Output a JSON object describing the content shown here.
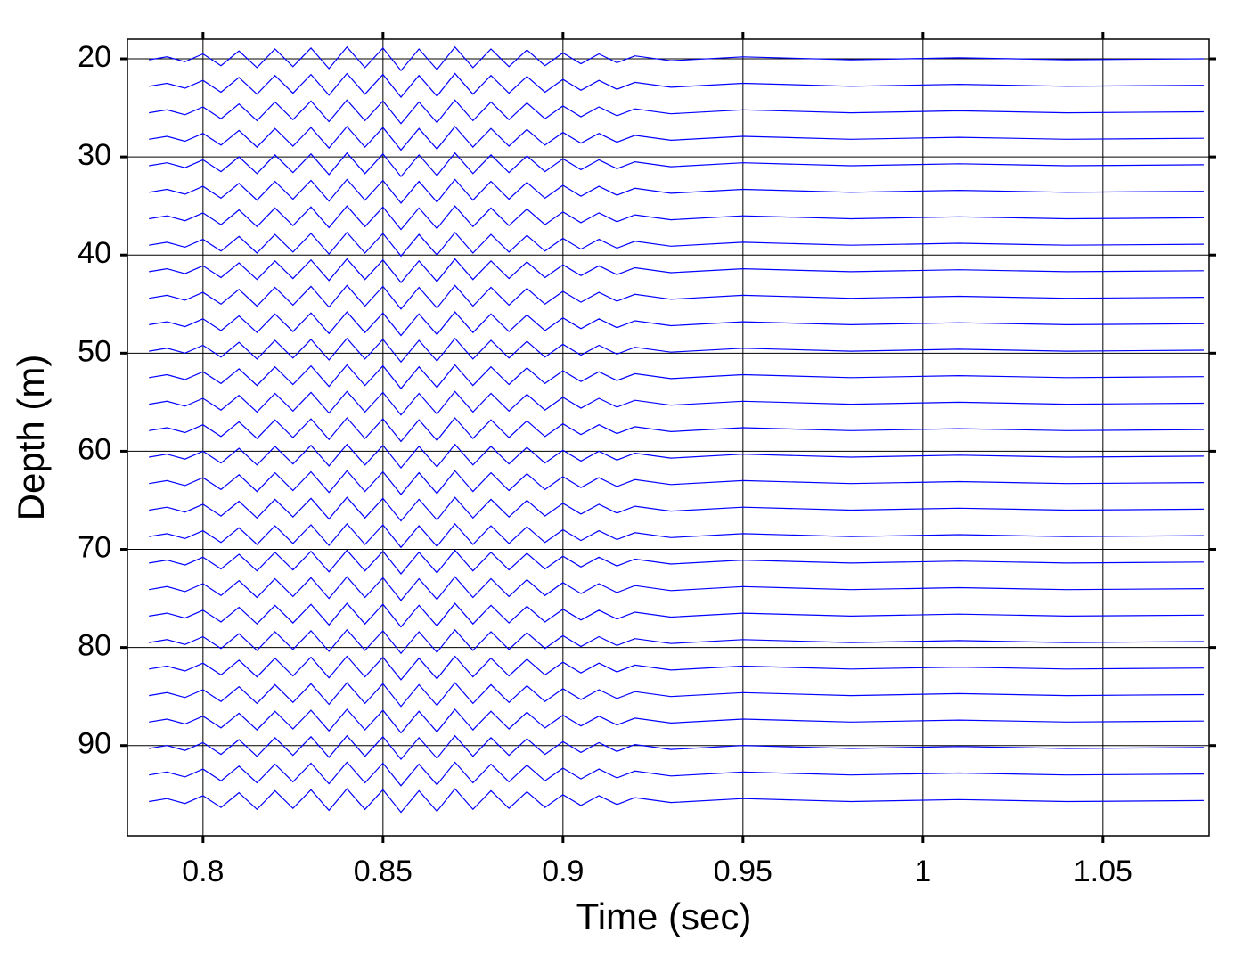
{
  "chart_data": {
    "type": "line",
    "x_label": "Time (sec)",
    "y_label": "Depth (m)",
    "xlim": [
      0.779,
      1.0795
    ],
    "ylim": [
      99.2,
      18.0
    ],
    "xticks": [
      0.8,
      0.85,
      0.9,
      0.95,
      1,
      1.05
    ],
    "yticks": [
      20,
      30,
      40,
      50,
      60,
      70,
      80,
      90
    ],
    "grid": true,
    "x": [
      0.785,
      0.79,
      0.795,
      0.8,
      0.805,
      0.81,
      0.815,
      0.82,
      0.825,
      0.83,
      0.835,
      0.84,
      0.845,
      0.85,
      0.855,
      0.86,
      0.865,
      0.87,
      0.875,
      0.88,
      0.885,
      0.89,
      0.895,
      0.9,
      0.905,
      0.91,
      0.915,
      0.92,
      0.93,
      0.95,
      0.98,
      1.01,
      1.04,
      1.078
    ],
    "series": [
      {
        "color": "#0000ff",
        "values": [
          20.1,
          19.8,
          20.3,
          19.5,
          20.7,
          19.2,
          20.9,
          19.0,
          20.8,
          18.9,
          21.0,
          18.8,
          20.9,
          18.9,
          21.2,
          19.0,
          21.1,
          18.8,
          20.9,
          19.0,
          20.8,
          19.1,
          20.7,
          19.4,
          20.5,
          19.5,
          20.4,
          19.7,
          20.2,
          19.8,
          20.1,
          19.9,
          20.1,
          20
        ]
      },
      {
        "color": "#0000ff",
        "values": [
          22.8,
          22.5,
          23.0,
          22.2,
          23.4,
          21.9,
          23.6,
          21.7,
          23.5,
          21.6,
          23.7,
          21.5,
          23.6,
          21.6,
          23.9,
          21.7,
          23.8,
          21.5,
          23.6,
          21.7,
          23.5,
          21.8,
          23.4,
          22.1,
          23.2,
          22.2,
          23.1,
          22.4,
          22.9,
          22.5,
          22.8,
          22.6,
          22.8,
          22.7
        ]
      },
      {
        "color": "#0000ff",
        "values": [
          25.5,
          25.2,
          25.7,
          24.9,
          26.1,
          24.6,
          26.3,
          24.4,
          26.2,
          24.3,
          26.4,
          24.2,
          26.3,
          24.3,
          26.6,
          24.4,
          26.5,
          24.2,
          26.3,
          24.4,
          26.2,
          24.5,
          26.1,
          24.8,
          25.9,
          24.9,
          25.8,
          25.1,
          25.6,
          25.2,
          25.5,
          25.3,
          25.5,
          25.4
        ]
      },
      {
        "color": "#0000ff",
        "values": [
          28.2,
          27.9,
          28.4,
          27.6,
          28.8,
          27.3,
          29.0,
          27.1,
          28.9,
          27.0,
          29.1,
          26.9,
          29.0,
          27.0,
          29.3,
          27.1,
          29.2,
          26.9,
          29.0,
          27.1,
          28.9,
          27.2,
          28.8,
          27.5,
          28.6,
          27.6,
          28.5,
          27.8,
          28.3,
          27.9,
          28.2,
          28.0,
          28.2,
          28.1
        ]
      },
      {
        "color": "#0000ff",
        "values": [
          30.9,
          30.6,
          31.1,
          30.3,
          31.5,
          30.0,
          31.7,
          29.8,
          31.6,
          29.7,
          31.8,
          29.6,
          31.7,
          29.7,
          32.0,
          29.8,
          31.9,
          29.6,
          31.7,
          29.8,
          31.6,
          29.9,
          31.5,
          30.2,
          31.3,
          30.3,
          31.2,
          30.5,
          31.0,
          30.6,
          30.9,
          30.7,
          30.9,
          30.8
        ]
      },
      {
        "color": "#0000ff",
        "values": [
          33.6,
          33.3,
          33.8,
          33.0,
          34.2,
          32.7,
          34.4,
          32.5,
          34.3,
          32.4,
          34.5,
          32.3,
          34.4,
          32.4,
          34.7,
          32.5,
          34.6,
          32.3,
          34.4,
          32.5,
          34.3,
          32.6,
          34.2,
          32.9,
          34.0,
          33.0,
          33.9,
          33.2,
          33.7,
          33.3,
          33.6,
          33.4,
          33.6,
          33.5
        ]
      },
      {
        "color": "#0000ff",
        "values": [
          36.3,
          36.0,
          36.5,
          35.7,
          36.9,
          35.4,
          37.1,
          35.2,
          37.0,
          35.1,
          37.2,
          35.0,
          37.1,
          35.1,
          37.4,
          35.2,
          37.3,
          35.0,
          37.1,
          35.2,
          37.0,
          35.3,
          36.9,
          35.6,
          36.7,
          35.7,
          36.6,
          35.9,
          36.4,
          36.0,
          36.3,
          36.1,
          36.3,
          36.2
        ]
      },
      {
        "color": "#0000ff",
        "values": [
          39.0,
          38.7,
          39.2,
          38.4,
          39.6,
          38.1,
          39.8,
          37.9,
          39.7,
          37.8,
          39.9,
          37.7,
          39.8,
          37.8,
          40.1,
          37.9,
          40.0,
          37.7,
          39.8,
          37.9,
          39.7,
          38.0,
          39.6,
          38.3,
          39.4,
          38.4,
          39.3,
          38.6,
          39.1,
          38.7,
          39.0,
          38.8,
          39.0,
          38.9
        ]
      },
      {
        "color": "#0000ff",
        "values": [
          41.7,
          41.4,
          41.9,
          41.1,
          42.3,
          40.8,
          42.5,
          40.6,
          42.4,
          40.5,
          42.6,
          40.4,
          42.5,
          40.5,
          42.8,
          40.6,
          42.7,
          40.4,
          42.5,
          40.6,
          42.4,
          40.7,
          42.3,
          41.0,
          42.1,
          41.1,
          42.0,
          41.3,
          41.8,
          41.4,
          41.7,
          41.5,
          41.7,
          41.6
        ]
      },
      {
        "color": "#0000ff",
        "values": [
          44.4,
          44.1,
          44.6,
          43.8,
          45.0,
          43.5,
          45.2,
          43.3,
          45.1,
          43.2,
          45.3,
          43.1,
          45.2,
          43.2,
          45.5,
          43.3,
          45.4,
          43.1,
          45.2,
          43.3,
          45.1,
          43.4,
          45.0,
          43.7,
          44.8,
          43.8,
          44.7,
          44.0,
          44.5,
          44.1,
          44.4,
          44.2,
          44.4,
          44.3
        ]
      },
      {
        "color": "#0000ff",
        "values": [
          47.1,
          46.8,
          47.3,
          46.5,
          47.7,
          46.2,
          47.9,
          46.0,
          47.8,
          45.9,
          48.0,
          45.8,
          47.9,
          45.9,
          48.2,
          46.0,
          48.1,
          45.8,
          47.9,
          46.0,
          47.8,
          46.1,
          47.7,
          46.4,
          47.5,
          46.5,
          47.4,
          46.7,
          47.2,
          46.8,
          47.1,
          46.9,
          47.1,
          47
        ]
      },
      {
        "color": "#0000ff",
        "values": [
          49.8,
          49.5,
          50.0,
          49.2,
          50.4,
          48.9,
          50.6,
          48.7,
          50.5,
          48.6,
          50.7,
          48.5,
          50.6,
          48.6,
          50.9,
          48.7,
          50.8,
          48.5,
          50.6,
          48.7,
          50.5,
          48.8,
          50.4,
          49.1,
          50.2,
          49.2,
          50.1,
          49.4,
          49.9,
          49.5,
          49.8,
          49.6,
          49.8,
          49.7
        ]
      },
      {
        "color": "#0000ff",
        "values": [
          52.5,
          52.2,
          52.7,
          51.9,
          53.1,
          51.6,
          53.3,
          51.4,
          53.2,
          51.3,
          53.4,
          51.2,
          53.3,
          51.3,
          53.6,
          51.4,
          53.5,
          51.2,
          53.3,
          51.4,
          53.2,
          51.5,
          53.1,
          51.8,
          52.9,
          51.9,
          52.8,
          52.1,
          52.6,
          52.2,
          52.5,
          52.3,
          52.5,
          52.4
        ]
      },
      {
        "color": "#0000ff",
        "values": [
          55.2,
          54.9,
          55.4,
          54.6,
          55.8,
          54.3,
          56.0,
          54.1,
          55.9,
          54.0,
          56.1,
          53.9,
          56.0,
          54.0,
          56.3,
          54.1,
          56.2,
          53.9,
          56.0,
          54.1,
          55.9,
          54.2,
          55.8,
          54.5,
          55.6,
          54.6,
          55.5,
          54.8,
          55.3,
          54.9,
          55.2,
          55.0,
          55.2,
          55.1
        ]
      },
      {
        "color": "#0000ff",
        "values": [
          57.9,
          57.6,
          58.1,
          57.3,
          58.5,
          57.0,
          58.7,
          56.8,
          58.6,
          56.7,
          58.8,
          56.6,
          58.7,
          56.7,
          59.0,
          56.8,
          58.9,
          56.6,
          58.7,
          56.8,
          58.6,
          56.9,
          58.5,
          57.2,
          58.3,
          57.3,
          58.2,
          57.5,
          58.0,
          57.6,
          57.9,
          57.7,
          57.9,
          57.8
        ]
      },
      {
        "color": "#0000ff",
        "values": [
          60.6,
          60.3,
          60.8,
          60.0,
          61.2,
          59.7,
          61.4,
          59.5,
          61.3,
          59.4,
          61.5,
          59.3,
          61.4,
          59.4,
          61.7,
          59.5,
          61.6,
          59.3,
          61.4,
          59.5,
          61.3,
          59.6,
          61.2,
          59.9,
          61.0,
          60.0,
          60.9,
          60.2,
          60.7,
          60.3,
          60.6,
          60.4,
          60.6,
          60.5
        ]
      },
      {
        "color": "#0000ff",
        "values": [
          63.3,
          63.0,
          63.5,
          62.7,
          63.9,
          62.4,
          64.1,
          62.2,
          64.0,
          62.1,
          64.2,
          62.0,
          64.1,
          62.1,
          64.4,
          62.2,
          64.3,
          62.0,
          64.1,
          62.2,
          64.0,
          62.3,
          63.9,
          62.6,
          63.7,
          62.7,
          63.6,
          62.9,
          63.4,
          63.0,
          63.3,
          63.1,
          63.3,
          63.2
        ]
      },
      {
        "color": "#0000ff",
        "values": [
          66.0,
          65.7,
          66.2,
          65.4,
          66.6,
          65.1,
          66.8,
          64.9,
          66.7,
          64.8,
          66.9,
          64.7,
          66.8,
          64.8,
          67.1,
          64.9,
          67.0,
          64.7,
          66.8,
          64.9,
          66.7,
          65.0,
          66.6,
          65.3,
          66.4,
          65.4,
          66.3,
          65.6,
          66.1,
          65.7,
          66.0,
          65.8,
          66.0,
          65.9
        ]
      },
      {
        "color": "#0000ff",
        "values": [
          68.7,
          68.4,
          68.9,
          68.1,
          69.3,
          67.8,
          69.5,
          67.6,
          69.4,
          67.5,
          69.6,
          67.4,
          69.5,
          67.5,
          69.8,
          67.6,
          69.7,
          67.4,
          69.5,
          67.6,
          69.4,
          67.7,
          69.3,
          68.0,
          69.1,
          68.1,
          69.0,
          68.3,
          68.8,
          68.4,
          68.7,
          68.5,
          68.7,
          68.6
        ]
      },
      {
        "color": "#0000ff",
        "values": [
          71.4,
          71.1,
          71.6,
          70.8,
          72.0,
          70.5,
          72.2,
          70.3,
          72.1,
          70.2,
          72.3,
          70.1,
          72.2,
          70.2,
          72.5,
          70.3,
          72.4,
          70.1,
          72.2,
          70.3,
          72.1,
          70.4,
          72.0,
          70.7,
          71.8,
          70.8,
          71.7,
          71.0,
          71.5,
          71.1,
          71.4,
          71.2,
          71.4,
          71.3
        ]
      },
      {
        "color": "#0000ff",
        "values": [
          74.1,
          73.8,
          74.3,
          73.5,
          74.7,
          73.2,
          74.9,
          73.0,
          74.8,
          72.9,
          75.0,
          72.8,
          74.9,
          72.9,
          75.2,
          73.0,
          75.1,
          72.8,
          74.9,
          73.0,
          74.8,
          73.1,
          74.7,
          73.4,
          74.5,
          73.5,
          74.4,
          73.7,
          74.2,
          73.8,
          74.1,
          73.9,
          74.1,
          74
        ]
      },
      {
        "color": "#0000ff",
        "values": [
          76.8,
          76.5,
          77.0,
          76.2,
          77.4,
          75.9,
          77.6,
          75.7,
          77.5,
          75.6,
          77.7,
          75.5,
          77.6,
          75.6,
          77.9,
          75.7,
          77.8,
          75.5,
          77.6,
          75.7,
          77.5,
          75.8,
          77.4,
          76.1,
          77.2,
          76.2,
          77.1,
          76.4,
          76.9,
          76.5,
          76.8,
          76.6,
          76.8,
          76.7
        ]
      },
      {
        "color": "#0000ff",
        "values": [
          79.5,
          79.2,
          79.7,
          78.9,
          80.1,
          78.6,
          80.3,
          78.4,
          80.2,
          78.3,
          80.4,
          78.2,
          80.3,
          78.3,
          80.6,
          78.4,
          80.5,
          78.2,
          80.3,
          78.4,
          80.2,
          78.5,
          80.1,
          78.8,
          79.9,
          78.9,
          79.8,
          79.1,
          79.6,
          79.2,
          79.5,
          79.3,
          79.5,
          79.4
        ]
      },
      {
        "color": "#0000ff",
        "values": [
          82.2,
          81.9,
          82.4,
          81.6,
          82.8,
          81.3,
          83.0,
          81.1,
          82.9,
          81.0,
          83.1,
          80.9,
          83.0,
          81.0,
          83.3,
          81.1,
          83.2,
          80.9,
          83.0,
          81.1,
          82.9,
          81.2,
          82.8,
          81.5,
          82.6,
          81.6,
          82.5,
          81.8,
          82.3,
          81.9,
          82.2,
          82.0,
          82.2,
          82.1
        ]
      },
      {
        "color": "#0000ff",
        "values": [
          84.9,
          84.6,
          85.1,
          84.3,
          85.5,
          84.0,
          85.7,
          83.8,
          85.6,
          83.7,
          85.8,
          83.6,
          85.7,
          83.7,
          86.0,
          83.8,
          85.9,
          83.6,
          85.7,
          83.8,
          85.6,
          83.9,
          85.5,
          84.2,
          85.3,
          84.3,
          85.2,
          84.5,
          85.0,
          84.6,
          84.9,
          84.7,
          84.9,
          84.8
        ]
      },
      {
        "color": "#0000ff",
        "values": [
          87.6,
          87.3,
          87.8,
          87.0,
          88.2,
          86.7,
          88.4,
          86.5,
          88.3,
          86.4,
          88.5,
          86.3,
          88.4,
          86.4,
          88.7,
          86.5,
          88.6,
          86.3,
          88.4,
          86.5,
          88.3,
          86.6,
          88.2,
          86.9,
          88.0,
          87.0,
          87.9,
          87.2,
          87.7,
          87.3,
          87.6,
          87.4,
          87.6,
          87.5
        ]
      },
      {
        "color": "#0000ff",
        "values": [
          90.3,
          90.0,
          90.5,
          89.7,
          90.9,
          89.4,
          91.1,
          89.2,
          91.0,
          89.1,
          91.2,
          89.0,
          91.1,
          89.1,
          91.4,
          89.2,
          91.3,
          89.0,
          91.1,
          89.2,
          91.0,
          89.3,
          90.9,
          89.6,
          90.7,
          89.7,
          90.6,
          89.9,
          90.4,
          90.0,
          90.3,
          90.1,
          90.3,
          90.2
        ]
      },
      {
        "color": "#0000ff",
        "values": [
          93.0,
          92.7,
          93.2,
          92.4,
          93.6,
          92.1,
          93.8,
          91.9,
          93.7,
          91.8,
          93.9,
          91.7,
          93.8,
          91.8,
          94.1,
          91.9,
          94.0,
          91.7,
          93.8,
          91.9,
          93.7,
          92.0,
          93.6,
          92.3,
          93.4,
          92.4,
          93.3,
          92.6,
          93.1,
          92.7,
          93.0,
          92.8,
          93.0,
          92.9
        ]
      },
      {
        "color": "#0000ff",
        "values": [
          95.7,
          95.4,
          95.9,
          95.1,
          96.3,
          94.8,
          96.5,
          94.6,
          96.4,
          94.5,
          96.6,
          94.4,
          96.5,
          94.5,
          96.8,
          94.6,
          96.7,
          94.4,
          96.5,
          94.6,
          96.4,
          94.7,
          96.3,
          95.0,
          96.1,
          95.1,
          96.0,
          95.3,
          95.8,
          95.4,
          95.7,
          95.5,
          95.7,
          95.6
        ]
      }
    ]
  }
}
